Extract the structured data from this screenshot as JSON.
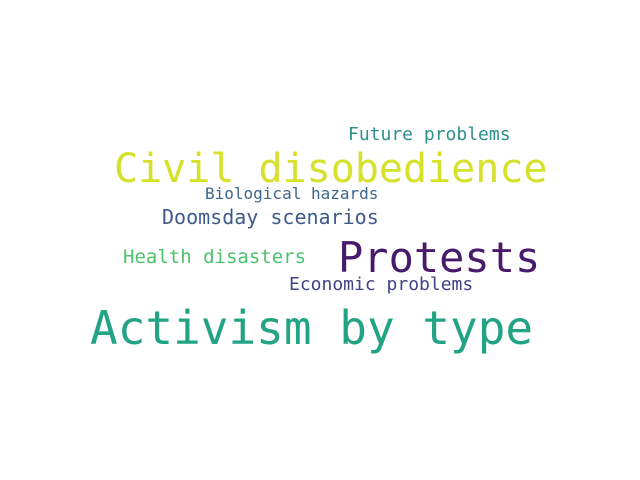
{
  "words": [
    {
      "id": "future",
      "text": "Future problems",
      "color": "#2c8f8c"
    },
    {
      "id": "civil",
      "text": "Civil disobedience",
      "color": "#d6e12c"
    },
    {
      "id": "bio",
      "text": "Biological hazards",
      "color": "#3d668c"
    },
    {
      "id": "doomsday",
      "text": "Doomsday scenarios",
      "color": "#3f5a8d"
    },
    {
      "id": "health",
      "text": "Health disasters",
      "color": "#4cc26c"
    },
    {
      "id": "protests",
      "text": "Protests",
      "color": "#481a6c"
    },
    {
      "id": "economic",
      "text": "Economic problems",
      "color": "#414287"
    },
    {
      "id": "activism",
      "text": "Activism by type",
      "color": "#22a384"
    }
  ]
}
